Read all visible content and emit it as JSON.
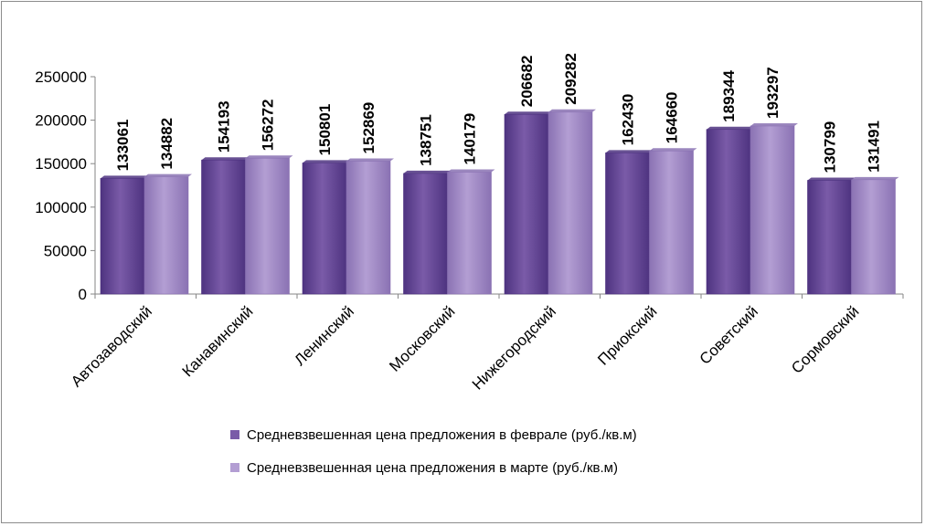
{
  "chart_data": {
    "type": "bar",
    "categories": [
      "Автозаводский",
      "Канавинский",
      "Ленинский",
      "Московский",
      "Нижегородский",
      "Приокский",
      "Советский",
      "Сормовский"
    ],
    "series": [
      {
        "name": "Средневзвешенная цена предложения в феврале (руб./кв.м)",
        "values": [
          133061,
          154193,
          150801,
          138751,
          206682,
          162430,
          189344,
          130799
        ],
        "color": "#7a5ba8",
        "color_dark": "#4e3380"
      },
      {
        "name": "Средневзвешенная цена предложения в марте (руб./кв.м)",
        "values": [
          134882,
          156272,
          152869,
          140179,
          209282,
          164660,
          193297,
          131491
        ],
        "color": "#b39ed3",
        "color_dark": "#8a72b3"
      }
    ],
    "yticks": [
      0,
      50000,
      100000,
      150000,
      200000,
      250000
    ],
    "ylim": [
      0,
      250000
    ],
    "data_labels": true,
    "legend": "bottom",
    "grid": false
  }
}
